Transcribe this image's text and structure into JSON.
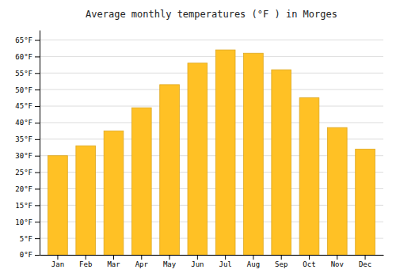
{
  "chart_data": {
    "type": "bar",
    "title": "Average monthly temperatures (°F ) in Morges",
    "categories": [
      "Jan",
      "Feb",
      "Mar",
      "Apr",
      "May",
      "Jun",
      "Jul",
      "Aug",
      "Sep",
      "Oct",
      "Nov",
      "Dec"
    ],
    "values": [
      30,
      33,
      37.5,
      44.5,
      51.5,
      58,
      62,
      61,
      56,
      47.5,
      38.5,
      32
    ],
    "color": "#FFC125",
    "ylim": [
      0,
      68
    ],
    "yticks": [
      {
        "value": 0,
        "label": "0°F"
      },
      {
        "value": 5,
        "label": "5°F"
      },
      {
        "value": 10,
        "label": "10°F"
      },
      {
        "value": 15,
        "label": "15°F"
      },
      {
        "value": 20,
        "label": "20°F"
      },
      {
        "value": 25,
        "label": "25°F"
      },
      {
        "value": 30,
        "label": "30°F"
      },
      {
        "value": 35,
        "label": "35°F"
      },
      {
        "value": 40,
        "label": "40°F"
      },
      {
        "value": 45,
        "label": "45°F"
      },
      {
        "value": 50,
        "label": "50°F"
      },
      {
        "value": 55,
        "label": "55°F"
      },
      {
        "value": 60,
        "label": "60°F"
      },
      {
        "value": 65,
        "label": "65°F"
      }
    ],
    "grid": true
  }
}
